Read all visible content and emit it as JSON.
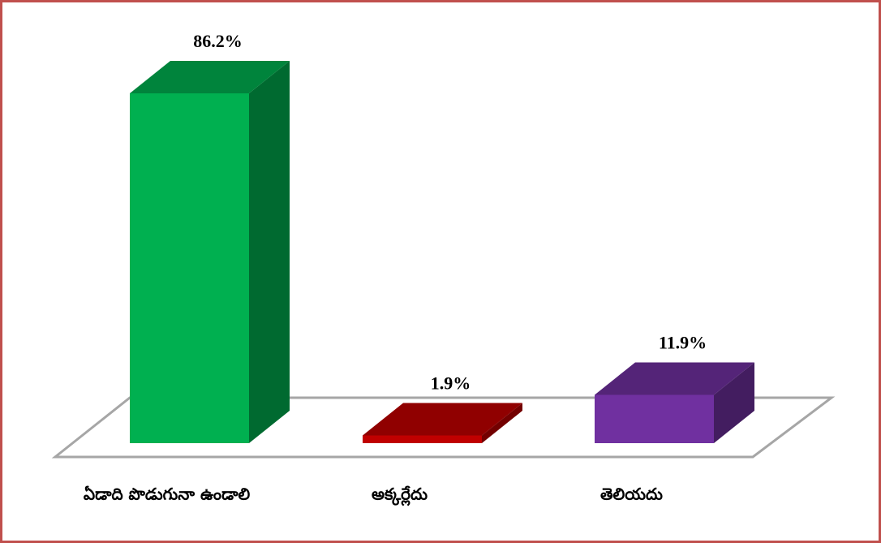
{
  "chart_data": {
    "type": "bar3d",
    "categories": [
      "ఏడాది పొడుగునా ఉండాలి",
      "అక్కర్లేదు",
      "తెలియదు"
    ],
    "values": [
      86.2,
      1.9,
      11.9
    ],
    "value_labels": [
      "86.2%",
      "1.9%",
      "11.9%"
    ],
    "colors": [
      "#00b050",
      "#c00000",
      "#7030a0"
    ],
    "ylim": [
      0,
      100
    ]
  }
}
